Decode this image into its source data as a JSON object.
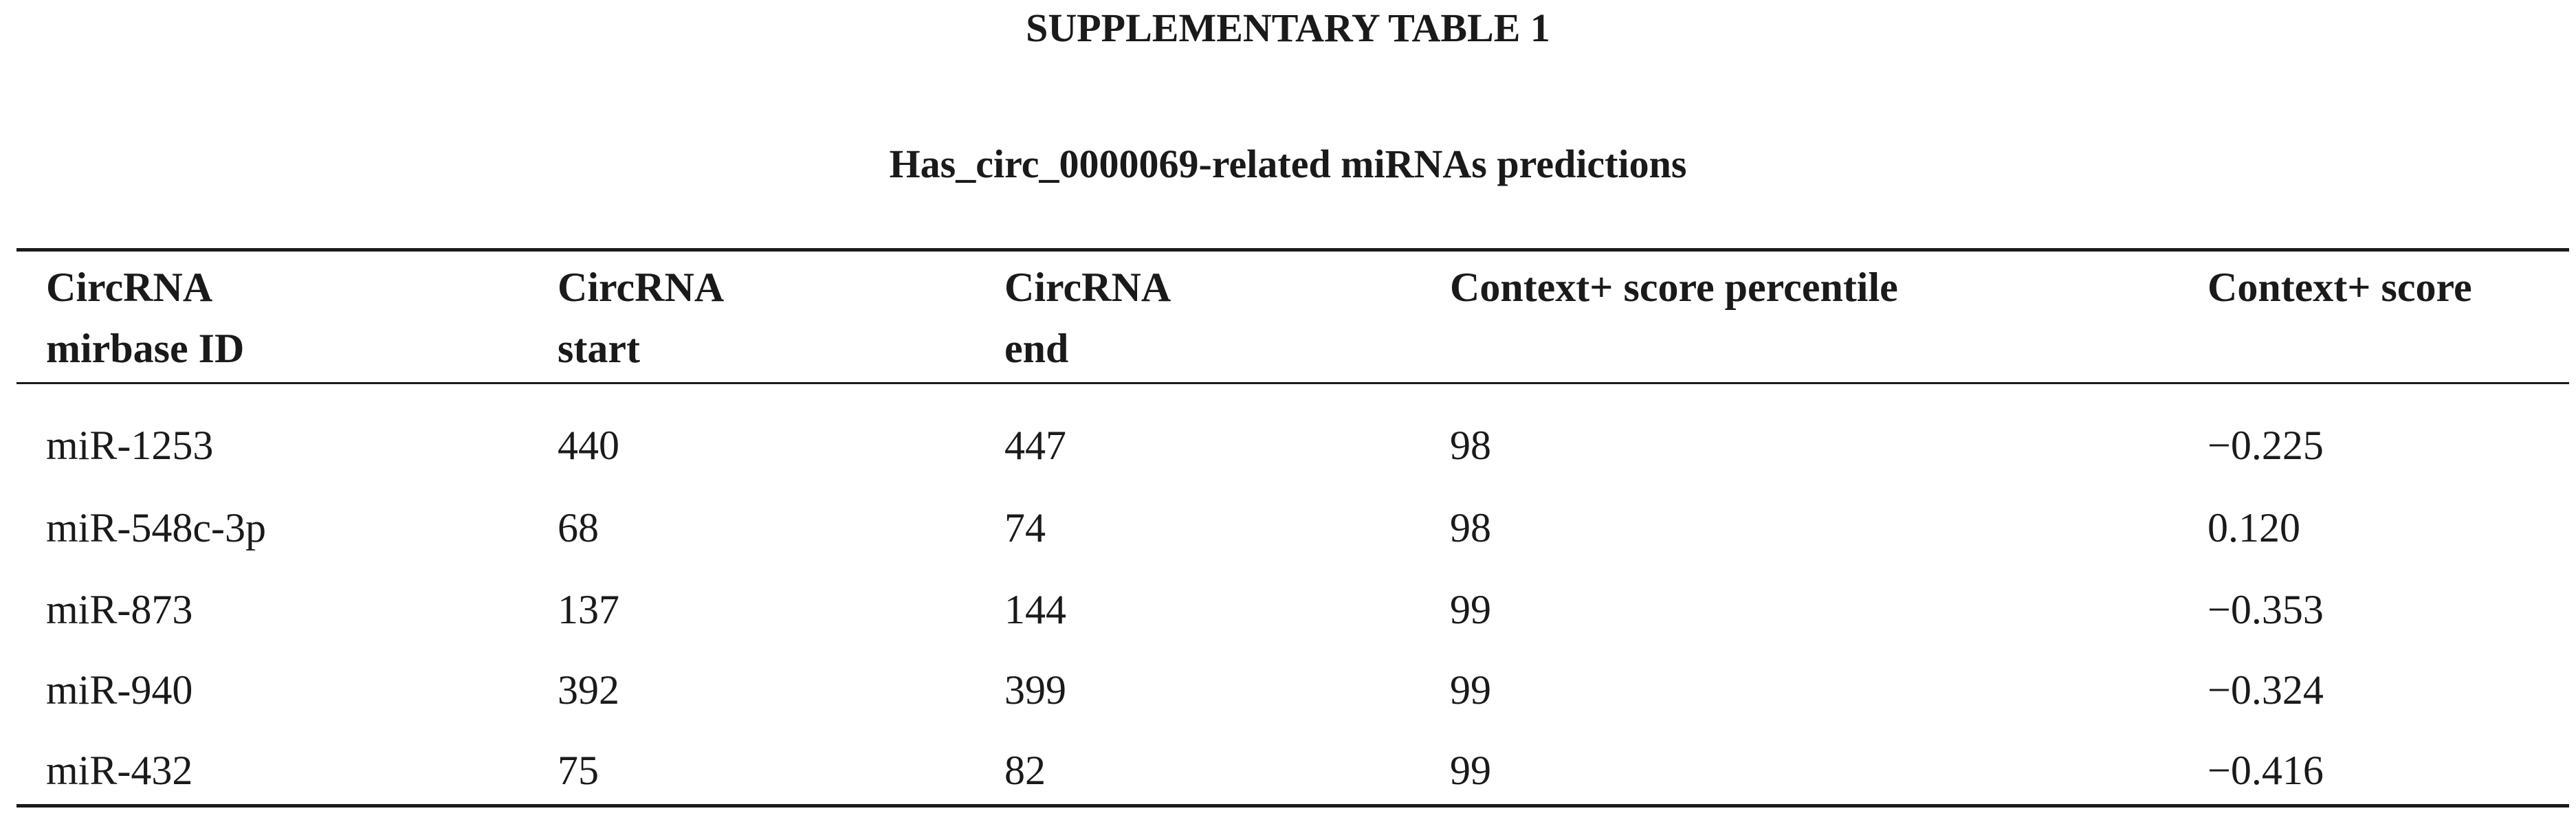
{
  "header": {
    "title": "SUPPLEMENTARY TABLE 1",
    "subtitle": "Has_circ_0000069-related miRNAs predictions"
  },
  "table": {
    "columns": [
      [
        "CircRNA",
        "mirbase ID"
      ],
      [
        "CircRNA",
        "start"
      ],
      [
        "CircRNA",
        "end"
      ],
      [
        "Context+ score percentile"
      ],
      [
        "Context+ score"
      ]
    ],
    "rows": [
      [
        "miR-1253",
        "440",
        "447",
        "98",
        "−0.225"
      ],
      [
        "miR-548c-3p",
        "68",
        "74",
        "98",
        "0.120"
      ],
      [
        "miR-873",
        "137",
        "144",
        "99",
        "−0.353"
      ],
      [
        "miR-940",
        "392",
        "399",
        "99",
        "−0.324"
      ],
      [
        "miR-432",
        "75",
        "82",
        "99",
        "−0.416"
      ]
    ]
  }
}
